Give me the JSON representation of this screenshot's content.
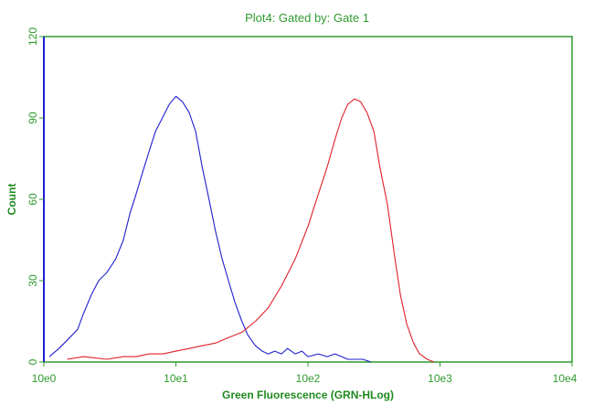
{
  "chart_data": {
    "type": "line",
    "title": "Plot4:  Gated by: Gate 1",
    "xlabel": "Green Fluorescence (GRN-HLog)",
    "ylabel": "Count",
    "x_scale": "log",
    "xlim": [
      1,
      10000
    ],
    "ylim": [
      0,
      120
    ],
    "x_ticks": [
      {
        "value": 1,
        "label": "10e0"
      },
      {
        "value": 10,
        "label": "10e1"
      },
      {
        "value": 100,
        "label": "10e2"
      },
      {
        "value": 1000,
        "label": "10e3"
      },
      {
        "value": 10000,
        "label": "10e4"
      }
    ],
    "y_ticks": [
      {
        "value": 0,
        "label": "0"
      },
      {
        "value": 30,
        "label": "30"
      },
      {
        "value": 60,
        "label": "60"
      },
      {
        "value": 90,
        "label": "90"
      },
      {
        "value": 120,
        "label": "120"
      }
    ],
    "grid": false,
    "legend": "none",
    "series": [
      {
        "color": "#1f1fd0",
        "x": [
          1.1,
          1.3,
          1.5,
          1.8,
          2.0,
          2.3,
          2.6,
          3.0,
          3.5,
          4.0,
          4.5,
          5.0,
          5.6,
          6.3,
          7.0,
          7.9,
          8.9,
          10,
          11.2,
          12.6,
          14.1,
          15.8,
          17.8,
          20,
          22.4,
          25,
          28,
          31.6,
          35,
          40,
          45,
          50,
          56,
          63,
          70,
          80,
          90,
          100,
          120,
          140,
          160,
          180,
          200,
          230,
          260,
          300
        ],
        "y": [
          2,
          5,
          8,
          12,
          18,
          25,
          30,
          33,
          38,
          45,
          55,
          62,
          70,
          78,
          85,
          90,
          95,
          98,
          96,
          92,
          85,
          72,
          60,
          48,
          38,
          30,
          22,
          15,
          10,
          6,
          4,
          3,
          4,
          3,
          5,
          3,
          4,
          2,
          3,
          2,
          3,
          2,
          1,
          1,
          1,
          0
        ]
      },
      {
        "color": "#e0202a",
        "x": [
          1.5,
          2,
          3,
          4,
          5,
          6.3,
          8,
          10,
          12.6,
          15.8,
          20,
          25,
          31.6,
          40,
          50,
          63,
          80,
          100,
          120,
          140,
          160,
          180,
          200,
          225,
          250,
          280,
          316,
          350,
          400,
          450,
          500,
          560,
          630,
          700,
          800,
          900
        ],
        "y": [
          1,
          2,
          1,
          2,
          2,
          3,
          3,
          4,
          5,
          6,
          7,
          9,
          11,
          15,
          20,
          28,
          38,
          50,
          62,
          72,
          82,
          90,
          95,
          97,
          96,
          92,
          85,
          72,
          58,
          40,
          25,
          14,
          7,
          3,
          1,
          0
        ]
      }
    ]
  }
}
